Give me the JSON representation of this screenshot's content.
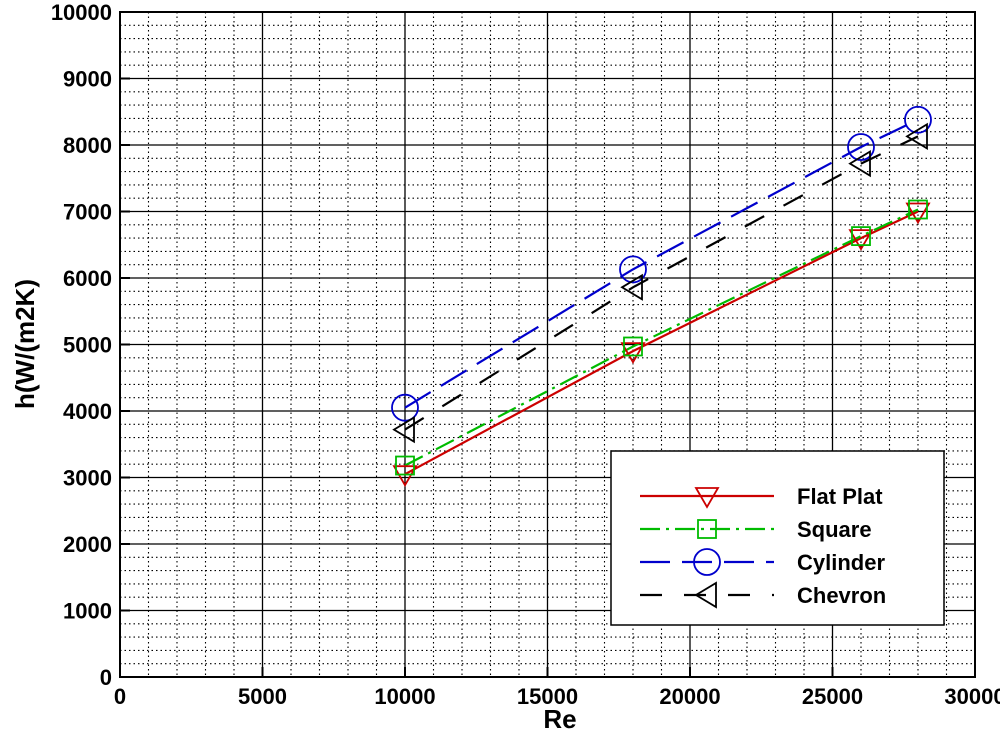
{
  "chart_data": {
    "type": "line",
    "title": "",
    "xlabel": "Re",
    "ylabel": "h(W/(m2K)",
    "xlim": [
      0,
      30000
    ],
    "ylim": [
      0,
      10000
    ],
    "x_ticks": [
      0,
      5000,
      10000,
      15000,
      20000,
      25000,
      30000
    ],
    "y_ticks": [
      0,
      1000,
      2000,
      3000,
      4000,
      5000,
      6000,
      7000,
      8000,
      9000,
      10000
    ],
    "x_tick_labels": [
      "0",
      "5000",
      "10000",
      "15000",
      "20000",
      "25000",
      "30000"
    ],
    "y_tick_labels": [
      "0",
      "1000",
      "2000",
      "3000",
      "4000",
      "5000",
      "6000",
      "7000",
      "8000",
      "9000",
      "10000"
    ],
    "grid": true,
    "minor_grid": true,
    "legend_position": "lower-right",
    "x": [
      10000,
      18000,
      26000,
      28000
    ],
    "series": [
      {
        "name": "Flat Plat",
        "values": [
          3050,
          4900,
          6600,
          7000
        ],
        "color": "#cc0000",
        "marker": "triangle-down",
        "dash": "solid"
      },
      {
        "name": "Square",
        "values": [
          3180,
          4970,
          6630,
          7030
        ],
        "color": "#00bb00",
        "marker": "square",
        "dash": "dash-dot"
      },
      {
        "name": "Cylinder",
        "values": [
          4050,
          6130,
          7970,
          8380
        ],
        "color": "#0000cc",
        "marker": "circle",
        "dash": "long-dash"
      },
      {
        "name": "Chevron",
        "values": [
          3720,
          5860,
          7720,
          8130
        ],
        "color": "#000000",
        "marker": "triangle-left",
        "dash": "dash-gap"
      }
    ]
  }
}
